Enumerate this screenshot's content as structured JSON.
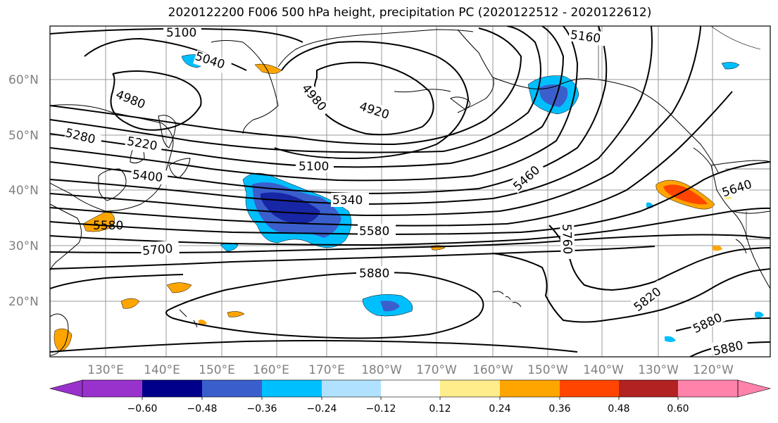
{
  "title": "2020122200 F006 500 hPa height, precipitation PC (2020122512 - 2020122612)",
  "lat_labels": [
    "60°N",
    "50°N",
    "40°N",
    "30°N",
    "20°N"
  ],
  "lon_labels": [
    "130°E",
    "140°E",
    "150°E",
    "160°E",
    "170°E",
    "180°W",
    "170°W",
    "160°W",
    "150°W",
    "140°W",
    "130°W",
    "120°W"
  ],
  "contour_labels": [
    "5100",
    "5040",
    "4980",
    "4980",
    "4920",
    "5160",
    "5280",
    "5220",
    "5400",
    "5100",
    "5340",
    "5460",
    "5640",
    "5580",
    "5580",
    "5700",
    "5760",
    "5880",
    "5820",
    "5880",
    "5880"
  ],
  "colorbar": {
    "ticks": [
      "−0.60",
      "−0.48",
      "−0.36",
      "−0.24",
      "−0.12",
      "0.12",
      "0.24",
      "0.36",
      "0.48",
      "0.60"
    ],
    "colors": [
      "#9932CC",
      "#00008B",
      "#3A5FCD",
      "#00BFFF",
      "#B0E2FF",
      "#FFFFFF",
      "#FFEC8B",
      "#FFA500",
      "#FF4500",
      "#B22222",
      "#FF82AB"
    ]
  }
}
